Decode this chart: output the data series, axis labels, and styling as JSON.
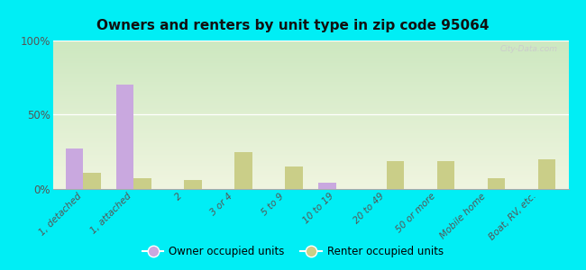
{
  "title": "Owners and renters by unit type in zip code 95064",
  "categories": [
    "1, detached",
    "1, attached",
    "2",
    "3 or 4",
    "5 to 9",
    "10 to 19",
    "20 to 49",
    "50 or more",
    "Mobile home",
    "Boat, RV, etc."
  ],
  "owner_values": [
    27,
    70,
    0,
    0,
    0,
    4,
    0,
    0,
    0,
    0
  ],
  "renter_values": [
    11,
    7,
    6,
    25,
    15,
    0,
    19,
    19,
    7,
    20
  ],
  "owner_color": "#c9a8df",
  "renter_color": "#cace88",
  "background_color": "#00eef5",
  "grad_top": "#cde8c0",
  "grad_bottom": "#f0f5e0",
  "ylim": [
    0,
    100
  ],
  "yticks": [
    0,
    50,
    100
  ],
  "ytick_labels": [
    "0%",
    "50%",
    "100%"
  ],
  "bar_width": 0.35,
  "legend_owner": "Owner occupied units",
  "legend_renter": "Renter occupied units",
  "watermark": "City-Data.com"
}
